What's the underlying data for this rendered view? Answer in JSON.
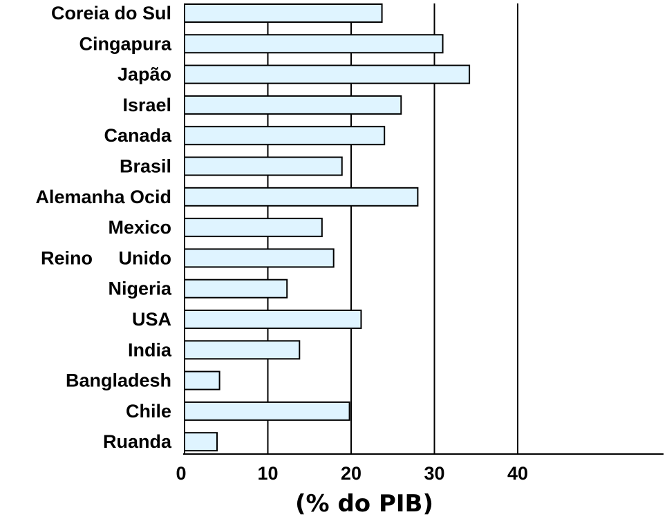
{
  "chart_data": {
    "type": "bar",
    "orientation": "horizontal",
    "title": "",
    "xlabel": "(% do PIB)",
    "ylabel": "",
    "categories": [
      "Coreia do Sul",
      "Cingapura",
      "Japão",
      "Israel",
      "Canada",
      "Brasil",
      "Alemanha Ocid",
      "Mexico",
      "Reino     Unido",
      "Nigeria",
      "USA",
      "India",
      "Bangladesh",
      "Chile",
      "Ruanda"
    ],
    "values": [
      23.7,
      31.0,
      34.2,
      26.0,
      24.0,
      18.9,
      28.0,
      16.5,
      17.9,
      12.3,
      21.2,
      13.8,
      4.2,
      19.8,
      3.9
    ],
    "xticks": [
      0,
      10,
      20,
      30,
      40
    ],
    "xlim": [
      0,
      57
    ],
    "grid": "vertical lines at 10, 20, 30, 40",
    "bar_color": "#dff4ff",
    "bar_edge_color": "#000000",
    "legend": "none"
  }
}
